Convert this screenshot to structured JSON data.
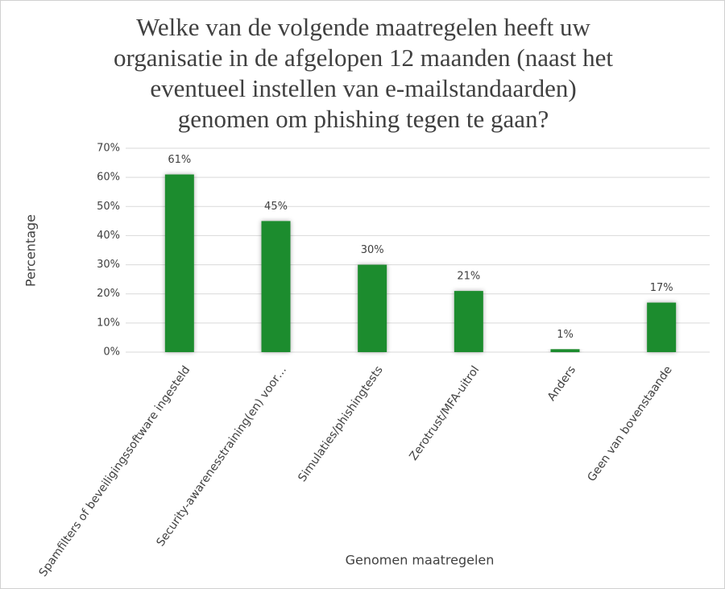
{
  "chart_data": {
    "type": "bar",
    "title": "Welke van de volgende maatregelen heeft uw organisatie in de afgelopen 12 maanden (naast het eventueel instellen van e-mailstandaarden) genomen om phishing tegen te gaan?",
    "x_label": "Genomen maatregelen",
    "y_label": "Percentage",
    "categories": [
      "Spamfilters of beveiligingssoftware ingesteld",
      "Security-awarenesstraining(en) voor…",
      "Simulaties/phishingtests",
      "Zerotrust/MFA-uitrol",
      "Anders",
      "Geen van bovenstaande"
    ],
    "values": [
      61,
      45,
      30,
      21,
      1,
      17
    ],
    "value_labels": [
      "61%",
      "45%",
      "30%",
      "21%",
      "1%",
      "17%"
    ],
    "color": "#1e8c2e",
    "ylim": [
      0,
      70
    ],
    "yticks": [
      {
        "value": 0,
        "label": "0%"
      },
      {
        "value": 10,
        "label": "10%"
      },
      {
        "value": 20,
        "label": "20%"
      },
      {
        "value": 30,
        "label": "30%"
      },
      {
        "value": 40,
        "label": "40%"
      },
      {
        "value": 50,
        "label": "50%"
      },
      {
        "value": 60,
        "label": "60%"
      },
      {
        "value": 70,
        "label": "70%"
      }
    ],
    "grid": true
  }
}
